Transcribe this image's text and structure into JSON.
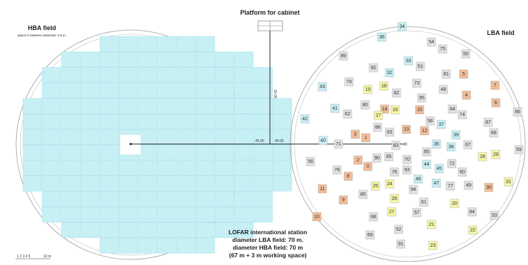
{
  "titles": {
    "platform": "Platform for cabinet",
    "hba": "HBA field",
    "hba_spacing": "space in between antennas: 6.6 m.",
    "lba": "LBA field"
  },
  "station_info": [
    "LOFAR international station",
    "diameter LBA field: 70 m.",
    "diameter HBA field: 70 m",
    "(67 m + 3 m working space)"
  ],
  "dimensions": {
    "vertical": "30.00",
    "left": "46.00",
    "right": "49.00"
  },
  "scale_bar": {
    "ticks": "1 2 3 4 5",
    "end": "10 m"
  },
  "colors": {
    "hba_tile": "#c7f0f5",
    "gray": "#e2e2e2",
    "cyan": "#c8eff5",
    "yellow": "#f6f6a6",
    "orange": "#f2bd99"
  },
  "hba_rows": [
    {
      "start": 4,
      "count": 6
    },
    {
      "start": 2,
      "count": 10
    },
    {
      "start": 1,
      "count": 12
    },
    {
      "start": 1,
      "count": 12
    },
    {
      "start": 0,
      "count": 14
    },
    {
      "start": 0,
      "count": 14
    },
    {
      "start": 0,
      "count": 14
    },
    {
      "start": 0,
      "count": 14
    },
    {
      "start": 0,
      "count": 14
    },
    {
      "start": 0,
      "count": 14
    },
    {
      "start": 1,
      "count": 12
    },
    {
      "start": 1,
      "count": 12
    },
    {
      "start": 2,
      "count": 10
    },
    {
      "start": 4,
      "count": 6
    }
  ],
  "lba_antennas": [
    {
      "n": "34",
      "c": "cyan"
    },
    {
      "n": "36",
      "c": "cyan"
    },
    {
      "n": "54",
      "c": "gray"
    },
    {
      "n": "75",
      "c": "gray"
    },
    {
      "n": "89",
      "c": "gray"
    },
    {
      "n": "50",
      "c": "gray"
    },
    {
      "n": "33",
      "c": "cyan"
    },
    {
      "n": "92",
      "c": "gray"
    },
    {
      "n": "51",
      "c": "gray"
    },
    {
      "n": "32",
      "c": "cyan"
    },
    {
      "n": "81",
      "c": "gray"
    },
    {
      "n": "5",
      "c": "orange"
    },
    {
      "n": "79",
      "c": "gray"
    },
    {
      "n": "73",
      "c": "gray"
    },
    {
      "n": "43",
      "c": "cyan"
    },
    {
      "n": "18",
      "c": "yellow"
    },
    {
      "n": "19",
      "c": "yellow"
    },
    {
      "n": "7",
      "c": "orange"
    },
    {
      "n": "82",
      "c": "gray"
    },
    {
      "n": "48",
      "c": "gray"
    },
    {
      "n": "95",
      "c": "gray"
    },
    {
      "n": "4",
      "c": "orange"
    },
    {
      "n": "6",
      "c": "orange"
    },
    {
      "n": "80",
      "c": "gray"
    },
    {
      "n": "41",
      "c": "cyan"
    },
    {
      "n": "14",
      "c": "orange"
    },
    {
      "n": "16",
      "c": "yellow"
    },
    {
      "n": "15",
      "c": "orange"
    },
    {
      "n": "64",
      "c": "gray"
    },
    {
      "n": "62",
      "c": "gray"
    },
    {
      "n": "17",
      "c": "yellow"
    },
    {
      "n": "74",
      "c": "gray"
    },
    {
      "n": "86",
      "c": "gray"
    },
    {
      "n": "42",
      "c": "cyan"
    },
    {
      "n": "58",
      "c": "gray"
    },
    {
      "n": "87",
      "c": "gray"
    },
    {
      "n": "88",
      "c": "gray"
    },
    {
      "n": "37",
      "c": "cyan"
    },
    {
      "n": "13",
      "c": "orange"
    },
    {
      "n": "63",
      "c": "gray"
    },
    {
      "n": "12",
      "c": "orange"
    },
    {
      "n": "66",
      "c": "gray"
    },
    {
      "n": "3",
      "c": "orange"
    },
    {
      "n": "1",
      "c": "orange"
    },
    {
      "n": "39",
      "c": "cyan"
    },
    {
      "n": "40",
      "c": "cyan"
    },
    {
      "n": "71",
      "c": "gray"
    },
    {
      "n": "83",
      "c": "gray"
    },
    {
      "n": "36",
      "c": "cyan"
    },
    {
      "n": "38",
      "c": "cyan"
    },
    {
      "n": "67",
      "c": "gray"
    },
    {
      "n": "85",
      "c": "gray"
    },
    {
      "n": "59",
      "c": "gray"
    },
    {
      "n": "90",
      "c": "gray"
    },
    {
      "n": "65",
      "c": "gray"
    },
    {
      "n": "70",
      "c": "gray"
    },
    {
      "n": "28",
      "c": "yellow"
    },
    {
      "n": "29",
      "c": "yellow"
    },
    {
      "n": "56",
      "c": "gray"
    },
    {
      "n": "2",
      "c": "orange"
    },
    {
      "n": "44",
      "c": "cyan"
    },
    {
      "n": "72",
      "c": "gray"
    },
    {
      "n": "0",
      "c": "orange"
    },
    {
      "n": "78",
      "c": "gray"
    },
    {
      "n": "76",
      "c": "gray"
    },
    {
      "n": "93",
      "c": "gray"
    },
    {
      "n": "45",
      "c": "cyan"
    },
    {
      "n": "60",
      "c": "gray"
    },
    {
      "n": "8",
      "c": "orange"
    },
    {
      "n": "46",
      "c": "cyan"
    },
    {
      "n": "47",
      "c": "cyan"
    },
    {
      "n": "77",
      "c": "gray"
    },
    {
      "n": "49",
      "c": "gray"
    },
    {
      "n": "31",
      "c": "yellow"
    },
    {
      "n": "25",
      "c": "yellow"
    },
    {
      "n": "24",
      "c": "yellow"
    },
    {
      "n": "30",
      "c": "orange"
    },
    {
      "n": "11",
      "c": "orange"
    },
    {
      "n": "94",
      "c": "gray"
    },
    {
      "n": "85",
      "c": "gray"
    },
    {
      "n": "26",
      "c": "yellow"
    },
    {
      "n": "9",
      "c": "orange"
    },
    {
      "n": "20",
      "c": "yellow"
    },
    {
      "n": "61",
      "c": "gray"
    },
    {
      "n": "27",
      "c": "yellow"
    },
    {
      "n": "57",
      "c": "gray"
    },
    {
      "n": "84",
      "c": "gray"
    },
    {
      "n": "10",
      "c": "orange"
    },
    {
      "n": "68",
      "c": "gray"
    },
    {
      "n": "53",
      "c": "gray"
    },
    {
      "n": "21",
      "c": "yellow"
    },
    {
      "n": "52",
      "c": "gray"
    },
    {
      "n": "22",
      "c": "yellow"
    },
    {
      "n": "69",
      "c": "gray"
    },
    {
      "n": "91",
      "c": "gray"
    },
    {
      "n": "23",
      "c": "yellow"
    }
  ]
}
